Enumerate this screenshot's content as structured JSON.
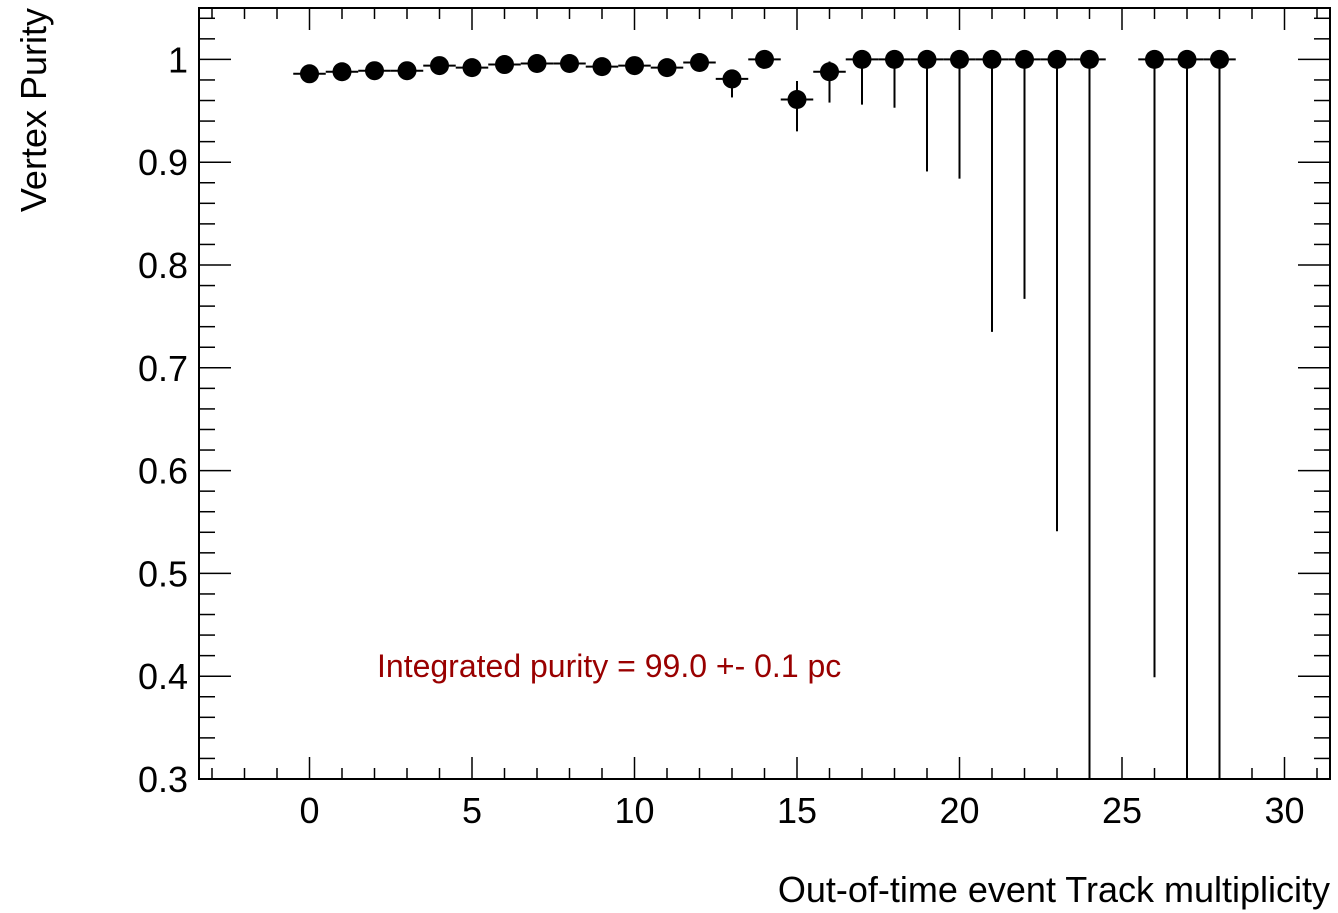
{
  "chart_data": {
    "type": "scatter",
    "xlabel": "Out-of-time event Track multiplicity",
    "ylabel": "Vertex Purity",
    "xlim": [
      -3.4,
      31.4
    ],
    "ylim": [
      0.3,
      1.05
    ],
    "xticks": [
      0,
      5,
      10,
      15,
      20,
      25,
      30
    ],
    "yticks": [
      0.3,
      0.4,
      0.5,
      0.6,
      0.7,
      0.8,
      0.9,
      1
    ],
    "ytick_labels": [
      "0.3",
      "0.4",
      "0.5",
      "0.6",
      "0.7",
      "0.8",
      "0.9",
      "1"
    ],
    "bin_half_width": 0.5,
    "grid": false,
    "annotation": {
      "text": "Integrated purity = 99.0 +- 0.1 pc",
      "color": "#990000"
    },
    "series": [
      {
        "marker": "filled-circle",
        "color": "#000000",
        "points": [
          {
            "x": 0,
            "y": 0.986,
            "err_lo": 0.002,
            "err_hi": 0.002
          },
          {
            "x": 1,
            "y": 0.988,
            "err_lo": 0.002,
            "err_hi": 0.002
          },
          {
            "x": 2,
            "y": 0.989,
            "err_lo": 0.002,
            "err_hi": 0.002
          },
          {
            "x": 3,
            "y": 0.989,
            "err_lo": 0.002,
            "err_hi": 0.002
          },
          {
            "x": 4,
            "y": 0.994,
            "err_lo": 0.002,
            "err_hi": 0.002
          },
          {
            "x": 5,
            "y": 0.992,
            "err_lo": 0.002,
            "err_hi": 0.002
          },
          {
            "x": 6,
            "y": 0.995,
            "err_lo": 0.002,
            "err_hi": 0.002
          },
          {
            "x": 7,
            "y": 0.996,
            "err_lo": 0.002,
            "err_hi": 0.002
          },
          {
            "x": 8,
            "y": 0.996,
            "err_lo": 0.002,
            "err_hi": 0.002
          },
          {
            "x": 9,
            "y": 0.993,
            "err_lo": 0.003,
            "err_hi": 0.003
          },
          {
            "x": 10,
            "y": 0.994,
            "err_lo": 0.003,
            "err_hi": 0.003
          },
          {
            "x": 11,
            "y": 0.992,
            "err_lo": 0.004,
            "err_hi": 0.004
          },
          {
            "x": 12,
            "y": 0.997,
            "err_lo": 0.004,
            "err_hi": 0.003
          },
          {
            "x": 13,
            "y": 0.981,
            "err_lo": 0.018,
            "err_hi": 0.008
          },
          {
            "x": 14,
            "y": 1.0,
            "err_lo": 0.008,
            "err_hi": 0.0
          },
          {
            "x": 15,
            "y": 0.961,
            "err_lo": 0.031,
            "err_hi": 0.018
          },
          {
            "x": 16,
            "y": 0.988,
            "err_lo": 0.03,
            "err_hi": 0.01
          },
          {
            "x": 17,
            "y": 1.0,
            "err_lo": 0.044,
            "err_hi": 0.0
          },
          {
            "x": 18,
            "y": 1.0,
            "err_lo": 0.047,
            "err_hi": 0.0
          },
          {
            "x": 19,
            "y": 1.0,
            "err_lo": 0.109,
            "err_hi": 0.0
          },
          {
            "x": 20,
            "y": 1.0,
            "err_lo": 0.116,
            "err_hi": 0.0
          },
          {
            "x": 21,
            "y": 1.0,
            "err_lo": 0.265,
            "err_hi": 0.0
          },
          {
            "x": 22,
            "y": 1.0,
            "err_lo": 0.233,
            "err_hi": 0.0
          },
          {
            "x": 23,
            "y": 1.0,
            "err_lo": 0.459,
            "err_hi": 0.0
          },
          {
            "x": 24,
            "y": 1.0,
            "err_lo": 0.7,
            "err_hi": 0.0
          },
          {
            "x": 26,
            "y": 1.0,
            "err_lo": 0.601,
            "err_hi": 0.0
          },
          {
            "x": 27,
            "y": 1.0,
            "err_lo": 0.7,
            "err_hi": 0.0
          },
          {
            "x": 28,
            "y": 1.0,
            "err_lo": 0.7,
            "err_hi": 0.0
          }
        ]
      }
    ]
  }
}
